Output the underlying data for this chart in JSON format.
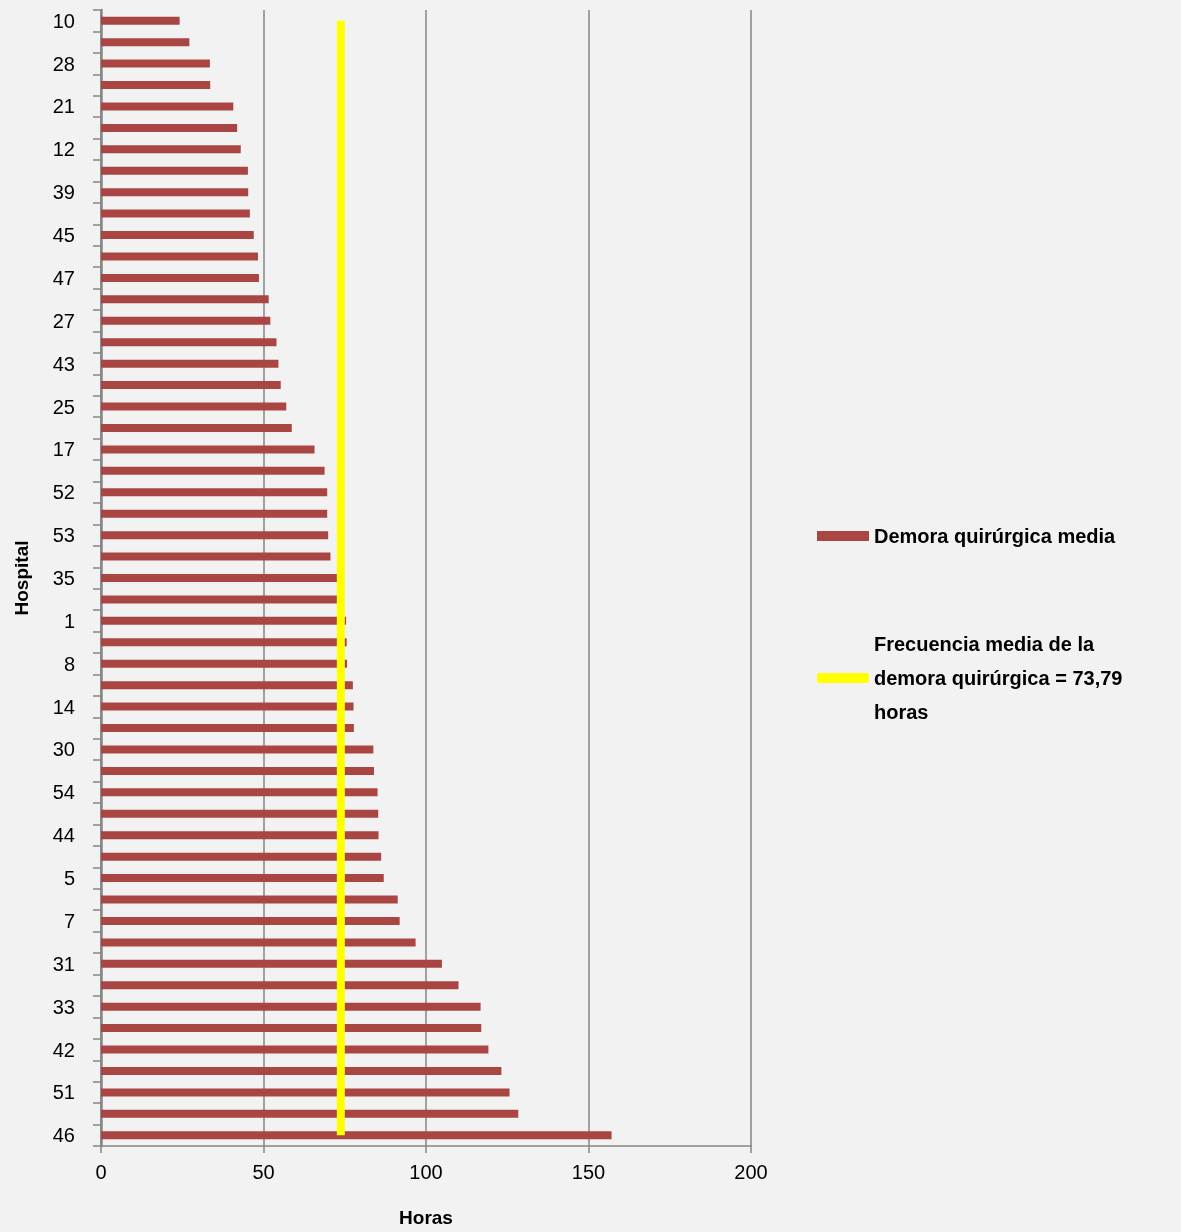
{
  "chart_data": {
    "type": "bar",
    "orientation": "horizontal",
    "xlabel": "Horas",
    "ylabel": "Hospital",
    "categories": [
      "10",
      null,
      "28",
      null,
      "21",
      null,
      "12",
      null,
      "39",
      null,
      "45",
      null,
      "47",
      null,
      "27",
      null,
      "43",
      null,
      "25",
      null,
      "17",
      null,
      "52",
      null,
      "53",
      null,
      "35",
      null,
      "1",
      null,
      "8",
      null,
      "14",
      null,
      "30",
      null,
      "54",
      null,
      "44",
      null,
      "5",
      null,
      "7",
      null,
      "31",
      null,
      "33",
      null,
      "42",
      null,
      "51",
      null,
      "46"
    ],
    "series": [
      {
        "name": "Demora quirúrgica media",
        "color": "#a94644",
        "values": [
          24.2,
          27.2,
          33.5,
          33.6,
          40.7,
          41.9,
          43.0,
          45.2,
          45.3,
          45.8,
          47.0,
          48.3,
          48.6,
          51.6,
          52.1,
          54.0,
          54.6,
          55.3,
          57.0,
          58.7,
          65.7,
          68.8,
          69.6,
          69.6,
          69.9,
          70.6,
          73,
          73,
          75.4,
          75.6,
          75.7,
          77.5,
          77.7,
          77.8,
          83.8,
          84.0,
          85.1,
          85.3,
          85.4,
          86.2,
          87.0,
          91.3,
          91.9,
          96.8,
          104.9,
          110.0,
          116.8,
          117.0,
          119.2,
          123.2,
          125.7,
          128.4,
          157.1
        ]
      },
      {
        "type": "line",
        "name": "Frecuencia media de la demora quirúrgica = 73,79 horas",
        "color": "#ffff00",
        "values": [
          73.79,
          73.79,
          73.79,
          73.79,
          73.79,
          73.79,
          73.79,
          73.79,
          73.79,
          73.79,
          73.79,
          73.79,
          73.79,
          73.79,
          73.79,
          73.79,
          73.79,
          73.79,
          73.79,
          73.79,
          73.79,
          73.79,
          73.79,
          73.79,
          73.79,
          73.79,
          73.79,
          73.79,
          73.79,
          73.79,
          73.79,
          73.79,
          73.79,
          73.79,
          73.79,
          73.79,
          73.79,
          73.79,
          73.79,
          73.79,
          73.79,
          73.79,
          73.79,
          73.79,
          73.79,
          73.79,
          73.79,
          73.79,
          73.79,
          73.79,
          73.79,
          73.79,
          73.79
        ]
      }
    ],
    "xlim": [
      0,
      200
    ],
    "xticks": [
      0,
      50,
      100,
      150,
      200
    ],
    "grid": "x",
    "legend": "right"
  }
}
